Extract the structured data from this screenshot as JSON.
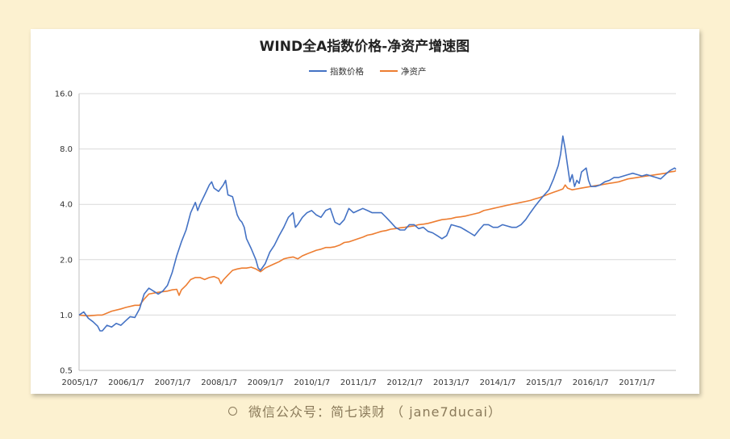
{
  "chart_data": {
    "type": "line",
    "title": "WIND全A指数价格-净资产增速图",
    "y_scale": "log2",
    "ylim": [
      0.5,
      16.0
    ],
    "y_ticks": [
      "0.5",
      "1.0",
      "2.0",
      "4.0",
      "8.0",
      "16.0"
    ],
    "x_ticks": [
      "2005/1/7",
      "2006/1/7",
      "2007/1/7",
      "2008/1/7",
      "2009/1/7",
      "2010/1/7",
      "2011/1/7",
      "2012/1/7",
      "2013/1/7",
      "2014/1/7",
      "2015/1/7",
      "2016/1/7",
      "2017/1/7"
    ],
    "x_range": [
      2005.0,
      2017.83
    ],
    "grid": "horizontal",
    "legend_position": "top",
    "series": [
      {
        "name": "指数价格",
        "color": "#4472c4",
        "points": [
          [
            2005.0,
            1.0
          ],
          [
            2005.1,
            1.04
          ],
          [
            2005.2,
            0.96
          ],
          [
            2005.3,
            0.92
          ],
          [
            2005.4,
            0.87
          ],
          [
            2005.45,
            0.82
          ],
          [
            2005.5,
            0.82
          ],
          [
            2005.6,
            0.88
          ],
          [
            2005.7,
            0.86
          ],
          [
            2005.8,
            0.9
          ],
          [
            2005.9,
            0.88
          ],
          [
            2006.0,
            0.93
          ],
          [
            2006.1,
            0.98
          ],
          [
            2006.2,
            0.97
          ],
          [
            2006.3,
            1.08
          ],
          [
            2006.4,
            1.3
          ],
          [
            2006.5,
            1.4
          ],
          [
            2006.6,
            1.35
          ],
          [
            2006.7,
            1.3
          ],
          [
            2006.8,
            1.35
          ],
          [
            2006.9,
            1.45
          ],
          [
            2007.0,
            1.7
          ],
          [
            2007.1,
            2.1
          ],
          [
            2007.2,
            2.5
          ],
          [
            2007.3,
            2.9
          ],
          [
            2007.4,
            3.6
          ],
          [
            2007.5,
            4.1
          ],
          [
            2007.55,
            3.7
          ],
          [
            2007.6,
            4.0
          ],
          [
            2007.7,
            4.5
          ],
          [
            2007.8,
            5.1
          ],
          [
            2007.85,
            5.3
          ],
          [
            2007.9,
            4.9
          ],
          [
            2008.0,
            4.7
          ],
          [
            2008.1,
            5.1
          ],
          [
            2008.15,
            5.4
          ],
          [
            2008.2,
            4.5
          ],
          [
            2008.3,
            4.4
          ],
          [
            2008.4,
            3.5
          ],
          [
            2008.45,
            3.3
          ],
          [
            2008.5,
            3.2
          ],
          [
            2008.55,
            3.0
          ],
          [
            2008.6,
            2.6
          ],
          [
            2008.7,
            2.3
          ],
          [
            2008.8,
            2.0
          ],
          [
            2008.85,
            1.8
          ],
          [
            2008.9,
            1.75
          ],
          [
            2009.0,
            1.9
          ],
          [
            2009.1,
            2.2
          ],
          [
            2009.2,
            2.4
          ],
          [
            2009.3,
            2.7
          ],
          [
            2009.4,
            3.0
          ],
          [
            2009.5,
            3.4
          ],
          [
            2009.6,
            3.6
          ],
          [
            2009.65,
            3.0
          ],
          [
            2009.7,
            3.1
          ],
          [
            2009.8,
            3.4
          ],
          [
            2009.9,
            3.6
          ],
          [
            2010.0,
            3.7
          ],
          [
            2010.1,
            3.5
          ],
          [
            2010.2,
            3.4
          ],
          [
            2010.3,
            3.7
          ],
          [
            2010.4,
            3.8
          ],
          [
            2010.5,
            3.2
          ],
          [
            2010.6,
            3.1
          ],
          [
            2010.7,
            3.3
          ],
          [
            2010.8,
            3.8
          ],
          [
            2010.9,
            3.6
          ],
          [
            2011.0,
            3.7
          ],
          [
            2011.1,
            3.8
          ],
          [
            2011.2,
            3.7
          ],
          [
            2011.3,
            3.6
          ],
          [
            2011.4,
            3.6
          ],
          [
            2011.5,
            3.6
          ],
          [
            2011.6,
            3.4
          ],
          [
            2011.7,
            3.2
          ],
          [
            2011.8,
            3.0
          ],
          [
            2011.9,
            2.9
          ],
          [
            2012.0,
            2.9
          ],
          [
            2012.1,
            3.1
          ],
          [
            2012.2,
            3.1
          ],
          [
            2012.3,
            2.95
          ],
          [
            2012.4,
            3.0
          ],
          [
            2012.5,
            2.85
          ],
          [
            2012.6,
            2.8
          ],
          [
            2012.7,
            2.7
          ],
          [
            2012.8,
            2.6
          ],
          [
            2012.9,
            2.7
          ],
          [
            2013.0,
            3.1
          ],
          [
            2013.1,
            3.05
          ],
          [
            2013.2,
            3.0
          ],
          [
            2013.3,
            2.9
          ],
          [
            2013.4,
            2.8
          ],
          [
            2013.5,
            2.7
          ],
          [
            2013.6,
            2.9
          ],
          [
            2013.7,
            3.1
          ],
          [
            2013.8,
            3.1
          ],
          [
            2013.9,
            3.0
          ],
          [
            2014.0,
            3.0
          ],
          [
            2014.1,
            3.1
          ],
          [
            2014.2,
            3.05
          ],
          [
            2014.3,
            3.0
          ],
          [
            2014.4,
            3.0
          ],
          [
            2014.5,
            3.1
          ],
          [
            2014.6,
            3.3
          ],
          [
            2014.7,
            3.6
          ],
          [
            2014.8,
            3.9
          ],
          [
            2014.9,
            4.2
          ],
          [
            2015.0,
            4.5
          ],
          [
            2015.1,
            4.8
          ],
          [
            2015.2,
            5.5
          ],
          [
            2015.3,
            6.5
          ],
          [
            2015.35,
            7.5
          ],
          [
            2015.4,
            9.4
          ],
          [
            2015.45,
            8.0
          ],
          [
            2015.5,
            6.5
          ],
          [
            2015.55,
            5.3
          ],
          [
            2015.6,
            5.8
          ],
          [
            2015.65,
            5.0
          ],
          [
            2015.7,
            5.4
          ],
          [
            2015.75,
            5.2
          ],
          [
            2015.8,
            6.0
          ],
          [
            2015.9,
            6.3
          ],
          [
            2015.95,
            5.4
          ],
          [
            2016.0,
            5.0
          ],
          [
            2016.1,
            5.0
          ],
          [
            2016.2,
            5.1
          ],
          [
            2016.3,
            5.3
          ],
          [
            2016.4,
            5.4
          ],
          [
            2016.5,
            5.6
          ],
          [
            2016.6,
            5.6
          ],
          [
            2016.7,
            5.7
          ],
          [
            2016.8,
            5.8
          ],
          [
            2016.9,
            5.9
          ],
          [
            2017.0,
            5.8
          ],
          [
            2017.1,
            5.7
          ],
          [
            2017.2,
            5.8
          ],
          [
            2017.3,
            5.7
          ],
          [
            2017.4,
            5.6
          ],
          [
            2017.5,
            5.5
          ],
          [
            2017.6,
            5.8
          ],
          [
            2017.7,
            6.1
          ],
          [
            2017.8,
            6.3
          ],
          [
            2017.83,
            6.2
          ]
        ]
      },
      {
        "name": "净资产",
        "color": "#ed7d31",
        "points": [
          [
            2005.0,
            1.0
          ],
          [
            2005.2,
            0.99
          ],
          [
            2005.4,
            1.0
          ],
          [
            2005.5,
            1.0
          ],
          [
            2005.7,
            1.05
          ],
          [
            2005.9,
            1.08
          ],
          [
            2006.0,
            1.1
          ],
          [
            2006.2,
            1.13
          ],
          [
            2006.3,
            1.13
          ],
          [
            2006.4,
            1.22
          ],
          [
            2006.5,
            1.3
          ],
          [
            2006.7,
            1.33
          ],
          [
            2006.9,
            1.35
          ],
          [
            2007.0,
            1.37
          ],
          [
            2007.1,
            1.38
          ],
          [
            2007.15,
            1.28
          ],
          [
            2007.2,
            1.37
          ],
          [
            2007.3,
            1.45
          ],
          [
            2007.4,
            1.56
          ],
          [
            2007.5,
            1.6
          ],
          [
            2007.6,
            1.6
          ],
          [
            2007.7,
            1.56
          ],
          [
            2007.8,
            1.6
          ],
          [
            2007.9,
            1.62
          ],
          [
            2008.0,
            1.58
          ],
          [
            2008.05,
            1.48
          ],
          [
            2008.1,
            1.55
          ],
          [
            2008.2,
            1.65
          ],
          [
            2008.3,
            1.75
          ],
          [
            2008.4,
            1.78
          ],
          [
            2008.5,
            1.8
          ],
          [
            2008.6,
            1.8
          ],
          [
            2008.7,
            1.82
          ],
          [
            2008.8,
            1.78
          ],
          [
            2008.9,
            1.72
          ],
          [
            2009.0,
            1.8
          ],
          [
            2009.1,
            1.85
          ],
          [
            2009.2,
            1.9
          ],
          [
            2009.3,
            1.95
          ],
          [
            2009.4,
            2.02
          ],
          [
            2009.5,
            2.05
          ],
          [
            2009.6,
            2.07
          ],
          [
            2009.7,
            2.02
          ],
          [
            2009.8,
            2.1
          ],
          [
            2009.9,
            2.15
          ],
          [
            2010.0,
            2.2
          ],
          [
            2010.1,
            2.25
          ],
          [
            2010.2,
            2.28
          ],
          [
            2010.3,
            2.33
          ],
          [
            2010.4,
            2.33
          ],
          [
            2010.5,
            2.35
          ],
          [
            2010.6,
            2.4
          ],
          [
            2010.7,
            2.48
          ],
          [
            2010.8,
            2.5
          ],
          [
            2010.9,
            2.55
          ],
          [
            2011.0,
            2.6
          ],
          [
            2011.1,
            2.65
          ],
          [
            2011.2,
            2.72
          ],
          [
            2011.3,
            2.75
          ],
          [
            2011.4,
            2.8
          ],
          [
            2011.5,
            2.85
          ],
          [
            2011.6,
            2.88
          ],
          [
            2011.7,
            2.93
          ],
          [
            2011.8,
            2.95
          ],
          [
            2011.9,
            2.98
          ],
          [
            2012.0,
            3.0
          ],
          [
            2012.1,
            3.03
          ],
          [
            2012.2,
            3.05
          ],
          [
            2012.3,
            3.1
          ],
          [
            2012.4,
            3.12
          ],
          [
            2012.5,
            3.15
          ],
          [
            2012.6,
            3.2
          ],
          [
            2012.7,
            3.25
          ],
          [
            2012.8,
            3.3
          ],
          [
            2012.9,
            3.32
          ],
          [
            2013.0,
            3.35
          ],
          [
            2013.1,
            3.4
          ],
          [
            2013.2,
            3.42
          ],
          [
            2013.3,
            3.45
          ],
          [
            2013.4,
            3.5
          ],
          [
            2013.5,
            3.55
          ],
          [
            2013.6,
            3.6
          ],
          [
            2013.7,
            3.7
          ],
          [
            2013.8,
            3.75
          ],
          [
            2013.9,
            3.8
          ],
          [
            2014.0,
            3.85
          ],
          [
            2014.1,
            3.9
          ],
          [
            2014.2,
            3.95
          ],
          [
            2014.3,
            4.0
          ],
          [
            2014.4,
            4.05
          ],
          [
            2014.5,
            4.1
          ],
          [
            2014.6,
            4.15
          ],
          [
            2014.7,
            4.2
          ],
          [
            2014.8,
            4.28
          ],
          [
            2014.9,
            4.35
          ],
          [
            2015.0,
            4.45
          ],
          [
            2015.1,
            4.55
          ],
          [
            2015.2,
            4.65
          ],
          [
            2015.3,
            4.75
          ],
          [
            2015.4,
            4.85
          ],
          [
            2015.45,
            5.1
          ],
          [
            2015.5,
            4.9
          ],
          [
            2015.6,
            4.8
          ],
          [
            2015.7,
            4.85
          ],
          [
            2015.8,
            4.9
          ],
          [
            2015.9,
            4.95
          ],
          [
            2016.0,
            5.0
          ],
          [
            2016.1,
            5.05
          ],
          [
            2016.2,
            5.1
          ],
          [
            2016.3,
            5.15
          ],
          [
            2016.4,
            5.2
          ],
          [
            2016.5,
            5.25
          ],
          [
            2016.6,
            5.3
          ],
          [
            2016.7,
            5.4
          ],
          [
            2016.8,
            5.5
          ],
          [
            2016.9,
            5.55
          ],
          [
            2017.0,
            5.6
          ],
          [
            2017.1,
            5.65
          ],
          [
            2017.2,
            5.7
          ],
          [
            2017.3,
            5.75
          ],
          [
            2017.4,
            5.8
          ],
          [
            2017.5,
            5.85
          ],
          [
            2017.6,
            5.9
          ],
          [
            2017.7,
            6.0
          ],
          [
            2017.8,
            6.05
          ],
          [
            2017.83,
            6.1
          ]
        ]
      }
    ]
  },
  "footer": {
    "icon": "circle-icon",
    "text": "微信公众号：简七读财 （ jane7ducai）"
  }
}
